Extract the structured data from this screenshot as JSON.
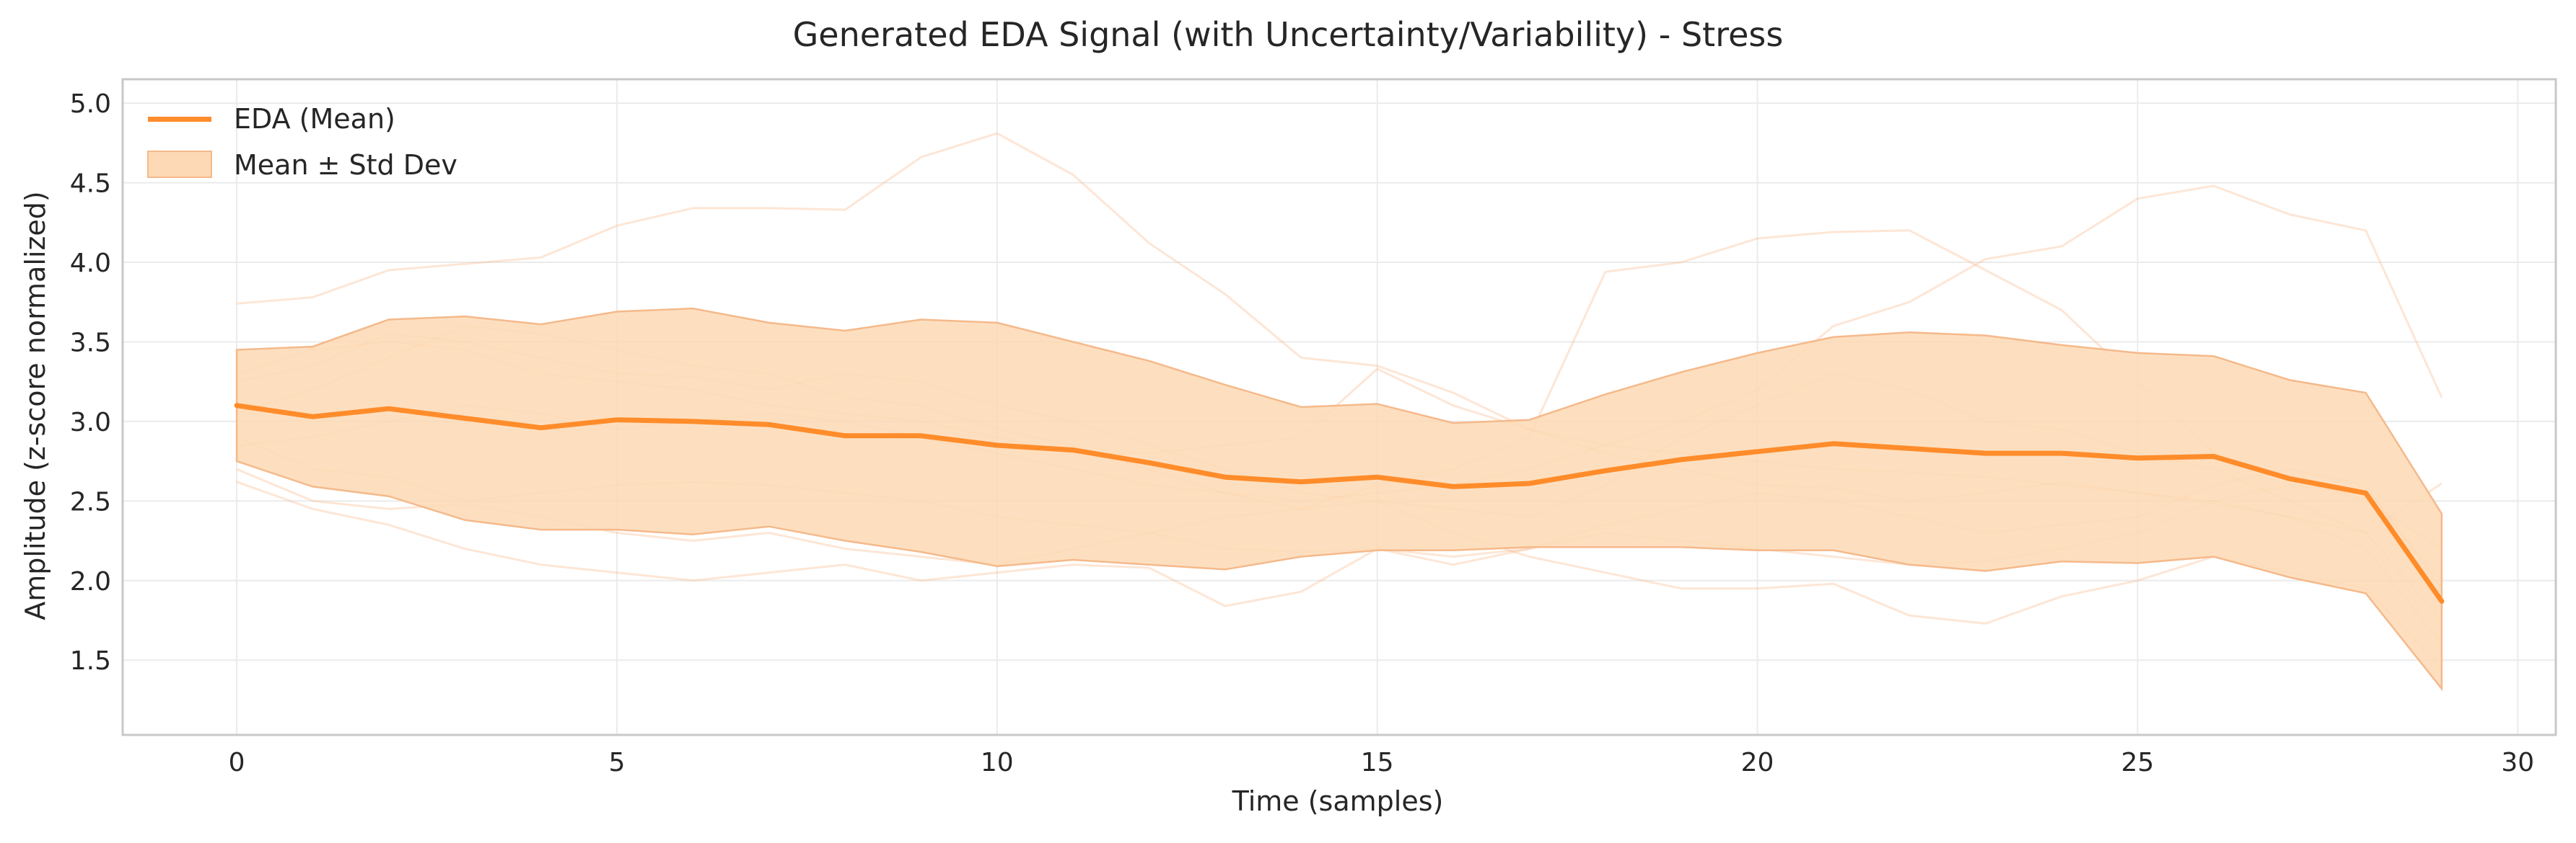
{
  "chart_data": {
    "type": "line",
    "title": "Generated EDA Signal (with Uncertainty/Variability) - Stress",
    "xlabel": "Time (samples)",
    "ylabel": "Amplitude (z-score normalized)",
    "xlim": [
      -1.5,
      30.5
    ],
    "ylim": [
      1.03,
      5.15
    ],
    "xticks": [
      0,
      5,
      10,
      15,
      20,
      25,
      30
    ],
    "yticks": [
      1.5,
      2.0,
      2.5,
      3.0,
      3.5,
      4.0,
      4.5,
      5.0
    ],
    "grid": true,
    "legend_position": "top-left",
    "colors": {
      "mean": "#ff8c2a",
      "band": "#fdd9b5",
      "band_edge": "#f5b98a",
      "samples": "#f8b88a",
      "grid": "#ebebeb",
      "frame": "#c8c8c8"
    },
    "x": [
      0,
      1,
      2,
      3,
      4,
      5,
      6,
      7,
      8,
      9,
      10,
      11,
      12,
      13,
      14,
      15,
      16,
      17,
      18,
      19,
      20,
      21,
      22,
      23,
      24,
      25,
      26,
      27,
      28,
      29
    ],
    "series": [
      {
        "name": "EDA (Mean)",
        "role": "mean",
        "values": [
          3.1,
          3.03,
          3.08,
          3.02,
          2.96,
          3.01,
          3.0,
          2.98,
          2.91,
          2.91,
          2.85,
          2.82,
          2.74,
          2.65,
          2.62,
          2.65,
          2.59,
          2.61,
          2.69,
          2.76,
          2.81,
          2.86,
          2.83,
          2.8,
          2.8,
          2.77,
          2.78,
          2.64,
          2.55,
          1.87
        ]
      },
      {
        "name": "Mean ± Std Dev",
        "role": "band",
        "upper": [
          3.45,
          3.47,
          3.64,
          3.66,
          3.61,
          3.69,
          3.71,
          3.62,
          3.57,
          3.64,
          3.62,
          3.5,
          3.38,
          3.23,
          3.09,
          3.11,
          2.99,
          3.01,
          3.17,
          3.31,
          3.43,
          3.53,
          3.56,
          3.54,
          3.48,
          3.43,
          3.41,
          3.26,
          3.18,
          2.42
        ],
        "lower": [
          2.75,
          2.59,
          2.53,
          2.38,
          2.32,
          2.32,
          2.29,
          2.34,
          2.25,
          2.18,
          2.09,
          2.13,
          2.1,
          2.07,
          2.15,
          2.19,
          2.19,
          2.21,
          2.21,
          2.21,
          2.19,
          2.19,
          2.1,
          2.06,
          2.12,
          2.11,
          2.15,
          2.02,
          1.92,
          1.32
        ]
      }
    ],
    "sample_traces": [
      [
        3.74,
        3.78,
        3.95,
        3.99,
        4.03,
        4.23,
        4.34,
        4.34,
        4.33,
        4.66,
        4.81,
        4.55,
        4.12,
        3.8,
        3.4,
        3.35,
        3.18,
        2.95,
        2.8,
        2.7,
        2.6,
        2.58,
        2.5,
        2.55,
        2.62,
        2.55,
        2.48,
        2.4,
        2.2,
        1.6
      ],
      [
        3.25,
        3.35,
        3.55,
        3.5,
        3.4,
        3.3,
        3.28,
        3.2,
        3.3,
        3.25,
        3.1,
        3.0,
        2.85,
        2.7,
        2.55,
        2.5,
        2.45,
        2.4,
        2.6,
        2.9,
        3.1,
        3.3,
        3.2,
        3.0,
        2.95,
        2.8,
        2.7,
        2.5,
        2.3,
        1.75
      ],
      [
        2.9,
        2.7,
        2.65,
        2.5,
        2.55,
        2.6,
        2.62,
        2.6,
        2.55,
        2.5,
        2.4,
        2.35,
        2.3,
        2.2,
        2.18,
        2.2,
        2.15,
        2.2,
        2.35,
        2.45,
        2.55,
        2.5,
        2.4,
        2.3,
        2.35,
        2.4,
        2.6,
        2.7,
        2.6,
        1.95
      ],
      [
        2.62,
        2.45,
        2.35,
        2.2,
        2.1,
        2.05,
        2.0,
        2.05,
        2.1,
        2.0,
        2.05,
        2.1,
        2.08,
        1.84,
        1.93,
        2.2,
        2.1,
        2.2,
        2.3,
        2.25,
        2.2,
        2.15,
        2.1,
        2.12,
        2.2,
        2.3,
        2.5,
        2.6,
        2.55,
        2.0
      ],
      [
        3.05,
        3.2,
        3.4,
        3.6,
        3.55,
        3.45,
        3.35,
        3.3,
        3.15,
        3.1,
        2.95,
        2.85,
        2.7,
        2.55,
        2.45,
        2.6,
        2.7,
        2.9,
        3.94,
        4.0,
        4.15,
        4.19,
        4.2,
        3.95,
        3.7,
        3.25,
        2.8,
        2.65,
        2.5,
        2.2
      ],
      [
        2.85,
        2.9,
        3.0,
        3.1,
        3.05,
        2.95,
        3.0,
        3.05,
        3.0,
        2.9,
        2.8,
        2.7,
        2.6,
        2.55,
        2.5,
        2.55,
        2.6,
        2.7,
        2.85,
        3.0,
        3.2,
        3.6,
        3.75,
        4.02,
        4.1,
        4.4,
        4.48,
        4.3,
        4.2,
        3.15
      ],
      [
        2.7,
        2.5,
        2.45,
        2.48,
        2.4,
        2.3,
        2.25,
        2.3,
        2.2,
        2.15,
        2.1,
        2.2,
        2.3,
        2.4,
        2.45,
        2.5,
        2.3,
        2.15,
        2.05,
        1.95,
        1.95,
        1.98,
        1.78,
        1.73,
        1.9,
        2.0,
        2.15,
        2.05,
        1.95,
        1.45
      ],
      [
        3.3,
        3.45,
        3.5,
        3.45,
        3.3,
        3.25,
        3.2,
        3.1,
        3.05,
        3.0,
        2.9,
        2.8,
        2.8,
        2.85,
        2.9,
        3.33,
        3.1,
        2.95,
        2.85,
        2.8,
        2.75,
        2.7,
        2.68,
        2.65,
        2.6,
        2.55,
        2.5,
        2.4,
        2.3,
        2.61
      ]
    ]
  }
}
